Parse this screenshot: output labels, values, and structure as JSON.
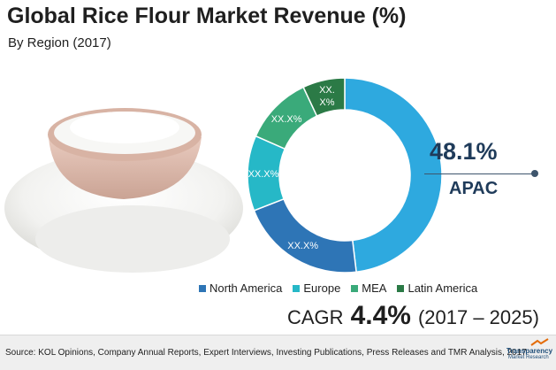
{
  "header": {
    "title": "Global Rice Flour Market Revenue (%)",
    "subtitle": "By Region (2017)"
  },
  "chart_data": {
    "type": "pie",
    "title": "Global Rice Flour Market Revenue (%)",
    "subtitle": "By Region (2017)",
    "donut": true,
    "slices": [
      {
        "name": "APAC",
        "value": 48.1,
        "label": "48.1%",
        "color": "#2ea9df"
      },
      {
        "name": "North America",
        "value": 21.0,
        "label": "XX.X%",
        "color": "#2e75b6"
      },
      {
        "name": "Europe",
        "value": 12.5,
        "label": "XX.X%",
        "color": "#26b8c7"
      },
      {
        "name": "MEA",
        "value": 11.4,
        "label": "XX.X%",
        "color": "#3aaa7a"
      },
      {
        "name": "Latin America",
        "value": 7.0,
        "label": "XX.X%",
        "color": "#2b7a46"
      }
    ],
    "legend": [
      "North America",
      "Europe",
      "MEA",
      "Latin America"
    ],
    "legend_position": "bottom"
  },
  "callout": {
    "value": "48.1%",
    "label": "APAC"
  },
  "cagr": {
    "label": "CAGR",
    "value": "4.4%",
    "period": "(2017 – 2025)"
  },
  "footer": {
    "source": "Source: KOL Opinions, Company Annual Reports, Expert Interviews, Investing Publications, Press Releases and TMR Analysis, 2017",
    "logo_line1": "Transparency",
    "logo_line2": "Market Research"
  }
}
